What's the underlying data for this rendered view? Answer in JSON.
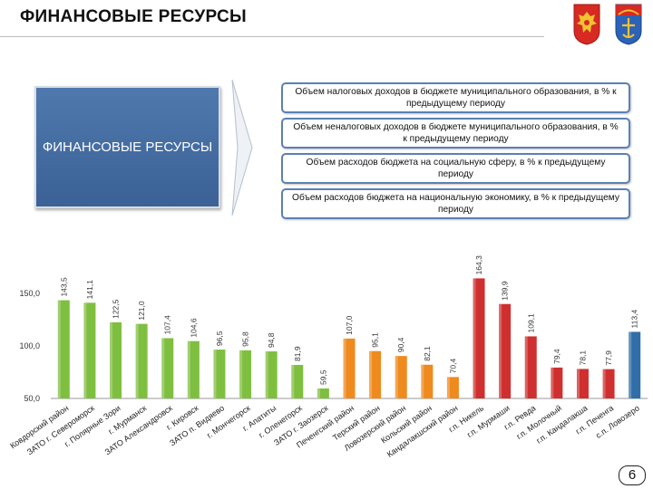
{
  "header": {
    "title": "ФИНАНСОВЫЕ РЕСУРСЫ"
  },
  "diagram": {
    "box_label": "ФИНАНСОВЫЕ РЕСУРСЫ",
    "indicators": [
      "Объем налоговых доходов в бюджете муниципального образования, в % к предыдущему периоду",
      "Объем неналоговых доходов в бюджете муниципального образования, в % к предыдущему периоду",
      "Объем расходов бюджета на социальную сферу, в % к предыдущему периоду",
      "Объем расходов бюджета на национальную экономику, в % к предыдущему периоду"
    ]
  },
  "chart_data": {
    "type": "bar",
    "ylim": [
      50,
      175
    ],
    "yticks": [
      "150,0",
      "100,0",
      "50,0"
    ],
    "ytick_values": [
      150,
      100,
      50
    ],
    "categories": [
      "Ковдорский район",
      "ЗАТО г. Североморск",
      "г. Полярные Зори",
      "г. Мурманск",
      "ЗАТО Александровск",
      "г. Кировск",
      "ЗАТО п. Видяево",
      "г. Мончегорск",
      "г. Апатиты",
      "г. Оленегорск",
      "ЗАТО г. Заозерск",
      "Печенгский район",
      "Терский район",
      "Ловозерский район",
      "Кольский район",
      "Кандалакшский район",
      "г.п. Никель",
      "г.п. Мурмаши",
      "г.п. Ревда",
      "г.п. Молочный",
      "г.п. Кандалакша",
      "г.п. Печенга",
      "с.п. Ловозеро"
    ],
    "values": [
      143.5,
      141.1,
      122.5,
      121.0,
      107.4,
      104.6,
      96.5,
      95.8,
      94.8,
      81.9,
      59.5,
      107.0,
      95.1,
      90.4,
      82.1,
      70.4,
      164.3,
      139.9,
      109.1,
      79.4,
      78.1,
      77.9,
      113.4
    ],
    "labels": [
      "143,5",
      "141,1",
      "122,5",
      "121,0",
      "107,4",
      "104,6",
      "96,5",
      "95,8",
      "94,8",
      "81,9",
      "59,5",
      "107,0",
      "95,1",
      "90,4",
      "82,1",
      "70,4",
      "164,3",
      "139,9",
      "109,1",
      "79,4",
      "78,1",
      "77,9",
      "113,4"
    ],
    "groups": [
      "city",
      "city",
      "city",
      "city",
      "city",
      "city",
      "city",
      "city",
      "city",
      "city",
      "city",
      "district",
      "district",
      "district",
      "district",
      "district",
      "settlement",
      "settlement",
      "settlement",
      "settlement",
      "settlement",
      "settlement",
      "rural"
    ],
    "group_colors": {
      "city": "#7fbf3f",
      "district": "#ef8a1e",
      "settlement": "#cf2f2f",
      "rural": "#2f6ea8"
    }
  },
  "footer": {
    "page_number": "6"
  }
}
